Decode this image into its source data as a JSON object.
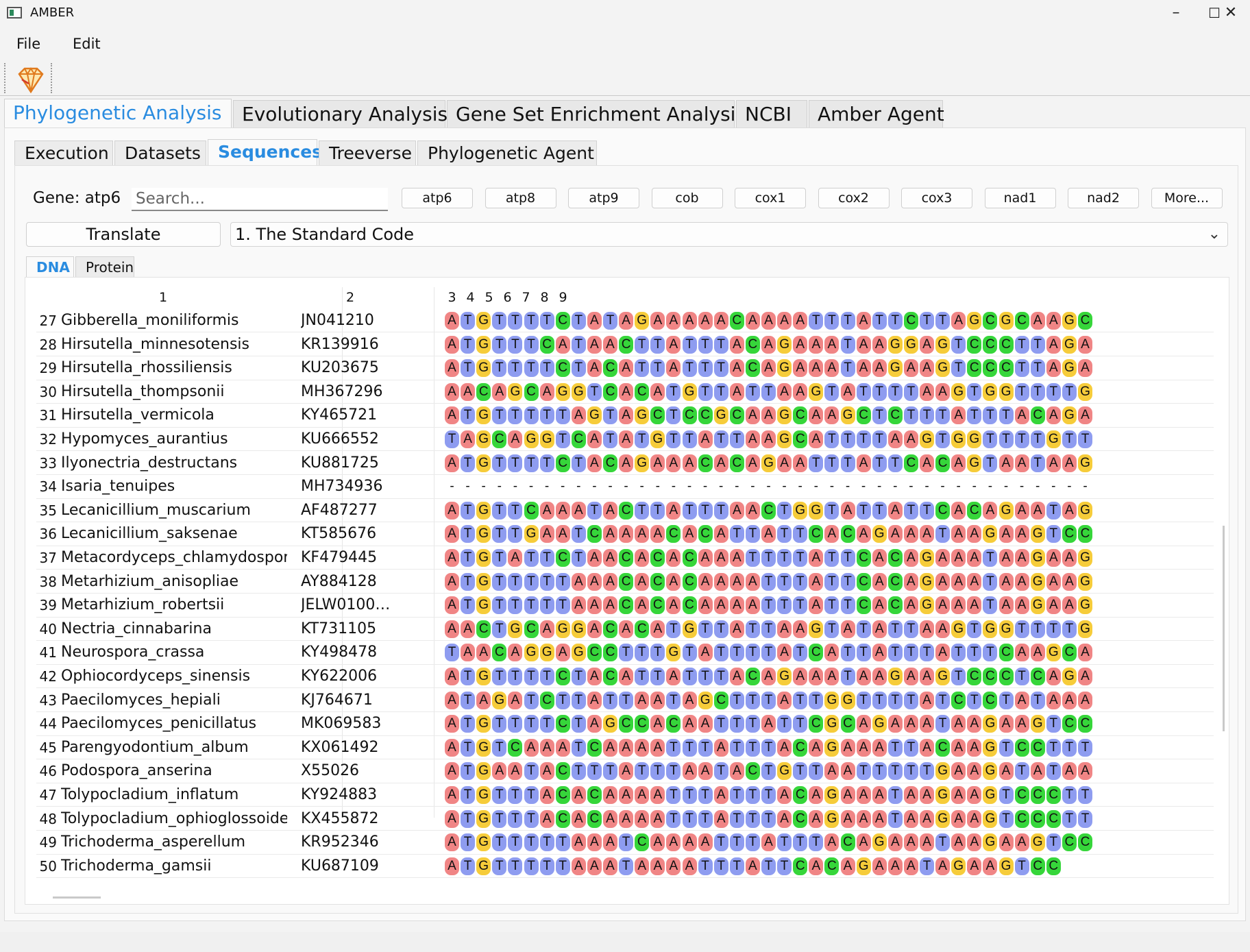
{
  "window": {
    "title": "AMBER",
    "minimize": "–",
    "maximize": "☐",
    "close": "✕"
  },
  "menu": {
    "file": "File",
    "edit": "Edit"
  },
  "toolbar": {
    "logo_icon": "amber-gem-icon"
  },
  "main_tabs": [
    "Phylogenetic Analysis",
    "Evolutionary Analysis",
    "Gene Set Enrichment Analysis",
    "NCBI",
    "Amber Agent"
  ],
  "sub_tabs": [
    "Execution",
    "Datasets",
    "Sequences",
    "Treeverse",
    "Phylogenetic Agent"
  ],
  "sequences": {
    "gene_label": "Gene: atp6",
    "search_placeholder": "Search...",
    "gene_buttons": [
      "atp6",
      "atp8",
      "atp9",
      "cob",
      "cox1",
      "cox2",
      "cox3",
      "nad1",
      "nad2",
      "More..."
    ],
    "translate_label": "Translate",
    "genetic_code": "1. The Standard Code",
    "seq_tabs": [
      "DNA",
      "Protein"
    ]
  },
  "table": {
    "headers": [
      "1",
      "2",
      "3",
      "4",
      "5",
      "6",
      "7",
      "8",
      "9"
    ],
    "rows": [
      {
        "n": "27",
        "name": "Gibberella_moniliformis",
        "acc": "JN041210",
        "seq": "ATGTTTTCTATAGAAAAACAAAATTTATTCTTAGCGCAAGC"
      },
      {
        "n": "28",
        "name": "Hirsutella_minnesotensis",
        "acc": "KR139916",
        "seq": "ATGTTTCATAACTTATTTACAGAAATAAGGAGTCCCTTAGA"
      },
      {
        "n": "29",
        "name": "Hirsutella_rhossiliensis",
        "acc": "KU203675",
        "seq": "ATGTTTTCTACATTATTTACAGAAATAAGAAGTCCCTTAGA"
      },
      {
        "n": "30",
        "name": "Hirsutella_thompsonii",
        "acc": "MH367296",
        "seq": "AACAGCAGGTCACATGTTATTAAGTATTTTAAGTGGTTTTG"
      },
      {
        "n": "31",
        "name": "Hirsutella_vermicola",
        "acc": "KY465721",
        "seq": "ATGTTTTTAGTAGCTCCGCAAGCAAGCTCTTTATTTACAGA"
      },
      {
        "n": "32",
        "name": "Hypomyces_aurantius",
        "acc": "KU666552",
        "seq": "TAGCAGGTCATATGTTATTAAGCATTTTAAGTGGTTTTGTT"
      },
      {
        "n": "33",
        "name": "Ilyonectria_destructans",
        "acc": "KU881725",
        "seq": "ATGTTTTCTACAGAAACACAGAATTTATTCACAGTAATAAG"
      },
      {
        "n": "34",
        "name": "Isaria_tenuipes",
        "acc": "MH734936",
        "seq": "-----------------------------------------"
      },
      {
        "n": "35",
        "name": "Lecanicillium_muscarium",
        "acc": "AF487277",
        "seq": "ATGTTCAAATACTTATTTAACTGGTATTATTCACAGAATAG"
      },
      {
        "n": "36",
        "name": "Lecanicillium_saksenae",
        "acc": "KT585676",
        "seq": "ATGTTGAATCAAAACACATTATTCACAGAAATAAGAAGTCC"
      },
      {
        "n": "37",
        "name": "Metacordyceps_chlamydosporia",
        "acc": "KF479445",
        "seq": "ATGTATTCTAACACACAAATTTTATTCACAGAAATAAGAAG"
      },
      {
        "n": "38",
        "name": "Metarhizium_anisopliae",
        "acc": "AY884128",
        "seq": "ATGTTTTTAAACACACAAAATTTATTCACAGAAATAAGAAG"
      },
      {
        "n": "39",
        "name": "Metarhizium_robertsii",
        "acc": "JELW0100…",
        "seq": "ATGTTTTTAAACACACAAAATTTATTCACAGAAATAAGAAG"
      },
      {
        "n": "40",
        "name": "Nectria_cinnabarina",
        "acc": "KT731105",
        "seq": "AACTGCAGGACACATGTTATTAAGTATATTAAGTGGTTTTG"
      },
      {
        "n": "41",
        "name": "Neurospora_crassa",
        "acc": "KY498478",
        "seq": "TAACAGGAGCCTTTGTATTTTATCATTATTTATTTCAAGCA"
      },
      {
        "n": "42",
        "name": "Ophiocordyceps_sinensis",
        "acc": "KY622006",
        "seq": "ATGTTTTCTACATTATTTACAGAAATAAGAAGTCCCTCAGA"
      },
      {
        "n": "43",
        "name": "Paecilomyces_hepiali",
        "acc": "KJ764671",
        "seq": "ATAGATCTTATTAATAGCTTTATTGGTTTTATCTCTATAAA"
      },
      {
        "n": "44",
        "name": "Paecilomyces_penicillatus",
        "acc": "MK069583",
        "seq": "ATGTTTTCTAGCCACAATTTATTCGCAGAAATAAGAAGTCC"
      },
      {
        "n": "45",
        "name": "Parengyodontium_album",
        "acc": "KX061492",
        "seq": "ATGTCAAATCAAAATTTATTTACAGAAATTACAAGTCCTTT"
      },
      {
        "n": "46",
        "name": "Podospora_anserina",
        "acc": "X55026",
        "seq": "ATGAATACTTTATTTAATACTGTTAATTTTTGAAGATATAA"
      },
      {
        "n": "47",
        "name": "Tolypocladium_inflatum",
        "acc": "KY924883",
        "seq": "ATGTTTACACAAAATTTATTTACAGAAATAAGAAGTCCCTT"
      },
      {
        "n": "48",
        "name": "Tolypocladium_ophioglossoides",
        "acc": "KX455872",
        "seq": "ATGTTTACACAAAATTTATTTACAGAAATAAGAAGTCCCTT"
      },
      {
        "n": "49",
        "name": "Trichoderma_asperellum",
        "acc": "KR952346",
        "seq": "ATGTTTTTAAATCAAAATTTATTTACAGAAATAAGAAGTCC"
      },
      {
        "n": "50",
        "name": "Trichoderma_gamsii",
        "acc": "KU687109",
        "seq": "ATGTTTTTAAATAAAATTTATTCACAGAAATAGAAGTCC"
      }
    ]
  },
  "colors": {
    "A": "#f08585",
    "T": "#8e9cf0",
    "G": "#f6cc3a",
    "C": "#36d63a",
    "accent": "#2a8ce0"
  }
}
